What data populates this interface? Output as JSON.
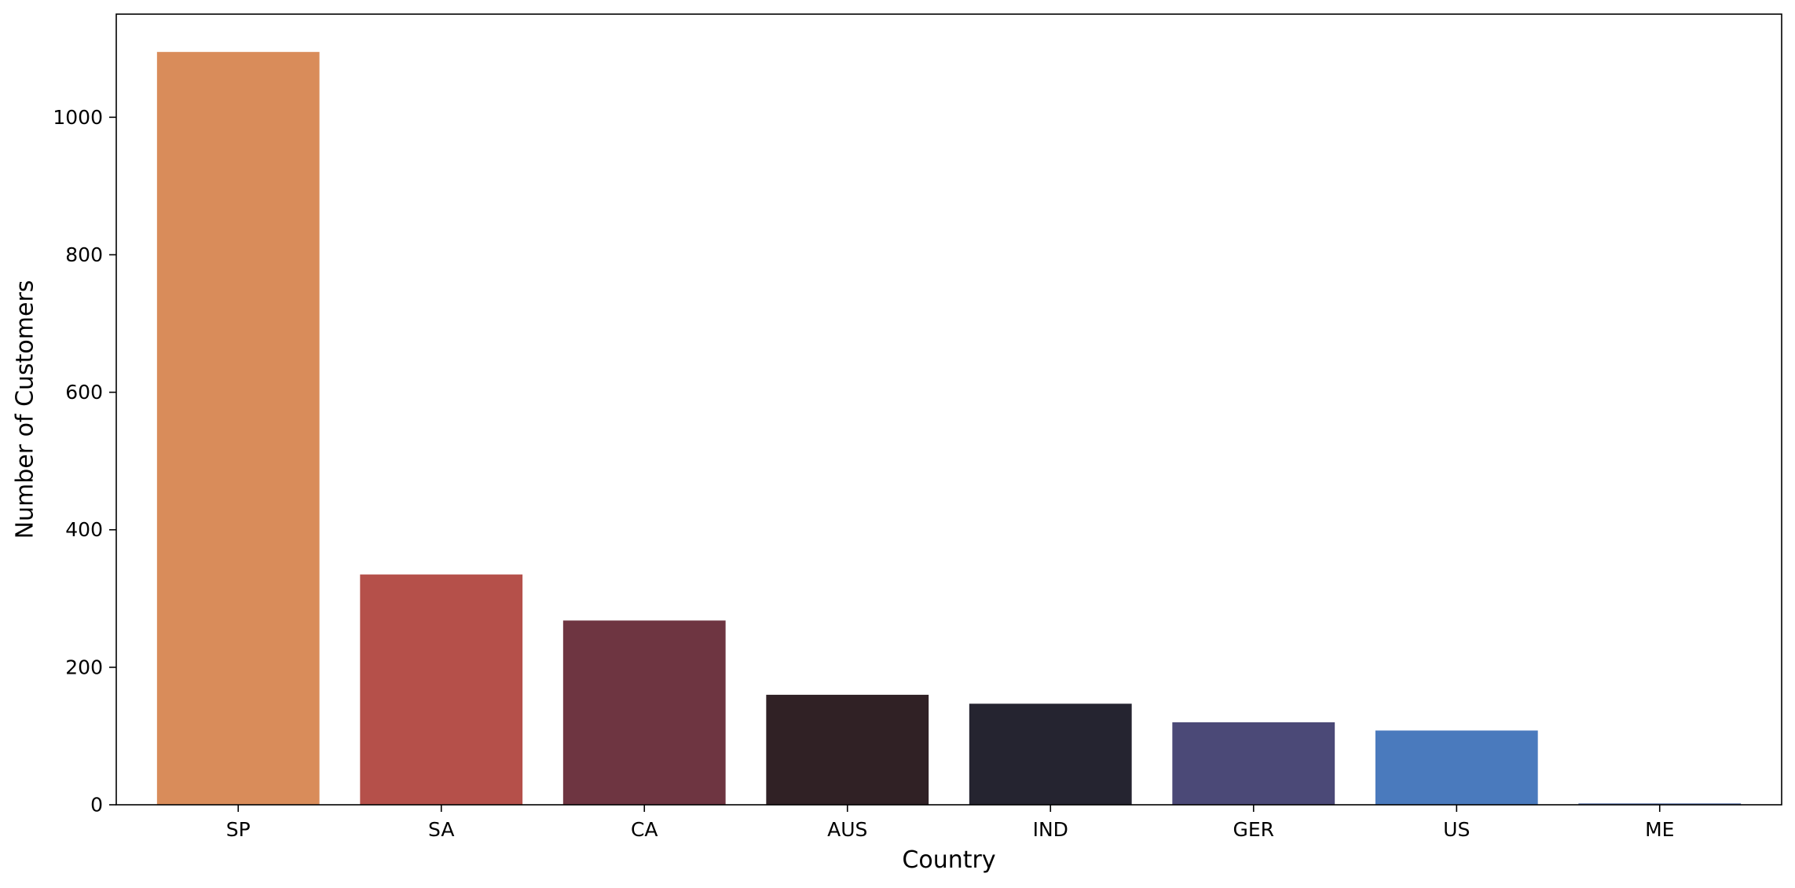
{
  "chart_data": {
    "type": "bar",
    "title": "",
    "xlabel": "Country",
    "ylabel": "Number of Customers",
    "categories": [
      "SP",
      "SA",
      "CA",
      "AUS",
      "IND",
      "GER",
      "US",
      "ME"
    ],
    "values": [
      1095,
      335,
      268,
      160,
      147,
      120,
      108,
      2
    ],
    "colors": [
      "#d98c5a",
      "#b5504a",
      "#6e3541",
      "#302125",
      "#252430",
      "#4b4977",
      "#4a7abd",
      "#5a72a8"
    ],
    "ylim": [
      0,
      1150
    ],
    "yticks": [
      0,
      200,
      400,
      600,
      800,
      1000
    ],
    "ytick_labels": [
      "0",
      "200",
      "400",
      "600",
      "800",
      "1000"
    ],
    "grid": false,
    "legend": false
  }
}
